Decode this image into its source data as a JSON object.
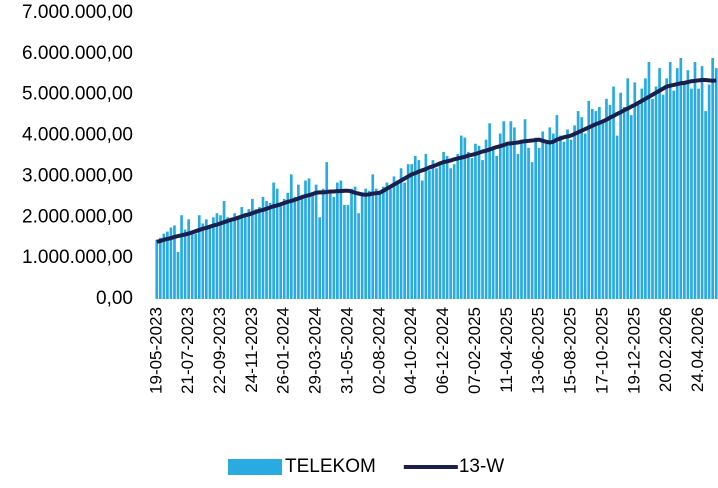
{
  "chart_data": {
    "type": "bar",
    "categories": [
      "19-05-2023",
      null,
      null,
      null,
      null,
      null,
      null,
      null,
      null,
      "21-07-2023",
      null,
      null,
      null,
      null,
      null,
      null,
      null,
      null,
      "22-09-2023",
      null,
      null,
      null,
      null,
      null,
      null,
      null,
      null,
      "24-11-2023",
      null,
      null,
      null,
      null,
      null,
      null,
      null,
      null,
      "26-01-2024",
      null,
      null,
      null,
      null,
      null,
      null,
      null,
      null,
      "29-03-2024",
      null,
      null,
      null,
      null,
      null,
      null,
      null,
      null,
      "31-05-2024",
      null,
      null,
      null,
      null,
      null,
      null,
      null,
      null,
      "02-08-2024",
      null,
      null,
      null,
      null,
      null,
      null,
      null,
      null,
      "04-10-2024",
      null,
      null,
      null,
      null,
      null,
      null,
      null,
      null,
      "06-12-2024",
      null,
      null,
      null,
      null,
      null,
      null,
      null,
      null,
      "07-02-2025",
      null,
      null,
      null,
      null,
      null,
      null,
      null,
      null,
      "11-04-2025",
      null,
      null,
      null,
      null,
      null,
      null,
      null,
      null,
      "13-06-2025",
      null,
      null,
      null,
      null,
      null,
      null,
      null,
      null,
      "15-08-2025",
      null,
      null,
      null,
      null,
      null,
      null,
      null,
      null,
      "17-10-2025",
      null,
      null,
      null,
      null,
      null,
      null,
      null,
      null,
      "19-12-2025",
      null,
      null,
      null,
      null,
      null,
      null,
      null,
      null,
      "20.02.2026",
      null,
      null,
      null,
      null,
      null,
      null,
      null,
      null,
      "24.04.2026",
      null,
      null,
      null,
      null,
      null
    ],
    "series": [
      {
        "name": "TELEKOM",
        "type": "bar",
        "color": "#29abe2",
        "values": [
          1450000,
          1500000,
          1600000,
          1650000,
          1750000,
          1800000,
          1150000,
          2050000,
          1700000,
          1950000,
          1650000,
          1600000,
          2050000,
          1850000,
          1950000,
          1800000,
          2000000,
          2100000,
          2050000,
          2400000,
          2000000,
          1950000,
          2100000,
          2000000,
          2250000,
          2100000,
          2200000,
          2450000,
          2200000,
          2250000,
          2500000,
          2400000,
          2350000,
          2850000,
          2700000,
          2300000,
          2450000,
          2600000,
          3050000,
          2500000,
          2800000,
          2550000,
          2900000,
          2950000,
          2600000,
          2800000,
          2000000,
          2700000,
          3350000,
          2600000,
          2500000,
          2850000,
          2900000,
          2300000,
          2300000,
          2700000,
          2750000,
          2100000,
          2600000,
          2700000,
          2650000,
          3050000,
          2700000,
          2650000,
          2750000,
          2850000,
          2700000,
          3000000,
          2900000,
          3200000,
          2850000,
          3300000,
          3300000,
          3500000,
          3400000,
          2900000,
          3550000,
          3150000,
          3400000,
          3200000,
          3300000,
          3600000,
          3500000,
          3200000,
          3300000,
          3550000,
          4000000,
          3950000,
          3600000,
          3450000,
          3800000,
          3750000,
          3400000,
          3900000,
          4300000,
          3700000,
          3500000,
          4050000,
          4350000,
          3750000,
          4350000,
          4200000,
          3550000,
          3900000,
          4400000,
          3700000,
          3350000,
          3950000,
          3700000,
          4100000,
          3850000,
          4200000,
          4050000,
          4500000,
          4000000,
          3850000,
          4150000,
          3900000,
          4250000,
          4600000,
          4450000,
          4050000,
          4850000,
          4650000,
          4600000,
          4700000,
          4350000,
          4900000,
          4750000,
          5200000,
          4000000,
          5050000,
          4700000,
          5400000,
          4500000,
          5300000,
          4750000,
          5150000,
          5400000,
          5800000,
          4900000,
          5200000,
          5650000,
          5000000,
          5400000,
          5800000,
          5100000,
          5650000,
          5900000,
          5250000,
          5600000,
          5150000,
          5800000,
          5150000,
          5700000,
          4600000,
          5250000,
          5900000,
          5650000
        ]
      },
      {
        "name": "13-W",
        "type": "line",
        "color": "#1b1f4b",
        "values": [
          1400000,
          1420000,
          1450000,
          1470000,
          1490000,
          1520000,
          1540000,
          1560000,
          1580000,
          1600000,
          1630000,
          1660000,
          1690000,
          1720000,
          1740000,
          1770000,
          1800000,
          1820000,
          1850000,
          1880000,
          1910000,
          1940000,
          1960000,
          1990000,
          2020000,
          2050000,
          2070000,
          2100000,
          2130000,
          2160000,
          2180000,
          2210000,
          2240000,
          2270000,
          2290000,
          2320000,
          2350000,
          2380000,
          2400000,
          2430000,
          2460000,
          2490000,
          2520000,
          2540000,
          2570000,
          2600000,
          2610000,
          2610000,
          2620000,
          2630000,
          2630000,
          2640000,
          2640000,
          2650000,
          2650000,
          2630000,
          2600000,
          2580000,
          2560000,
          2550000,
          2560000,
          2580000,
          2590000,
          2600000,
          2650000,
          2700000,
          2750000,
          2800000,
          2850000,
          2900000,
          2950000,
          3000000,
          3050000,
          3080000,
          3120000,
          3150000,
          3180000,
          3220000,
          3250000,
          3280000,
          3320000,
          3350000,
          3370000,
          3390000,
          3420000,
          3440000,
          3460000,
          3480000,
          3510000,
          3530000,
          3550000,
          3580000,
          3610000,
          3630000,
          3660000,
          3690000,
          3720000,
          3740000,
          3770000,
          3800000,
          3810000,
          3820000,
          3830000,
          3850000,
          3860000,
          3870000,
          3880000,
          3890000,
          3900000,
          3870000,
          3850000,
          3830000,
          3850000,
          3900000,
          3930000,
          3960000,
          3980000,
          4000000,
          4040000,
          4080000,
          4120000,
          4160000,
          4200000,
          4240000,
          4280000,
          4310000,
          4350000,
          4390000,
          4440000,
          4480000,
          4530000,
          4570000,
          4620000,
          4660000,
          4710000,
          4750000,
          4800000,
          4850000,
          4900000,
          4950000,
          5000000,
          5050000,
          5100000,
          5150000,
          5200000,
          5220000,
          5240000,
          5260000,
          5280000,
          5290000,
          5310000,
          5330000,
          5340000,
          5350000,
          5360000,
          5360000,
          5350000,
          5340000,
          5350000
        ]
      }
    ],
    "ylim": [
      0,
      7000000
    ],
    "yticks": [
      {
        "value": 0,
        "label": "0,00"
      },
      {
        "value": 1000000,
        "label": "1.000.000,00"
      },
      {
        "value": 2000000,
        "label": "2.000.000,00"
      },
      {
        "value": 3000000,
        "label": "3.000.000,00"
      },
      {
        "value": 4000000,
        "label": "4.000.000,00"
      },
      {
        "value": 5000000,
        "label": "5.000.000,00"
      },
      {
        "value": 6000000,
        "label": "6.000.000,00"
      },
      {
        "value": 7000000,
        "label": "7.000.000,00"
      }
    ],
    "grid": false,
    "legend": "bottom"
  }
}
